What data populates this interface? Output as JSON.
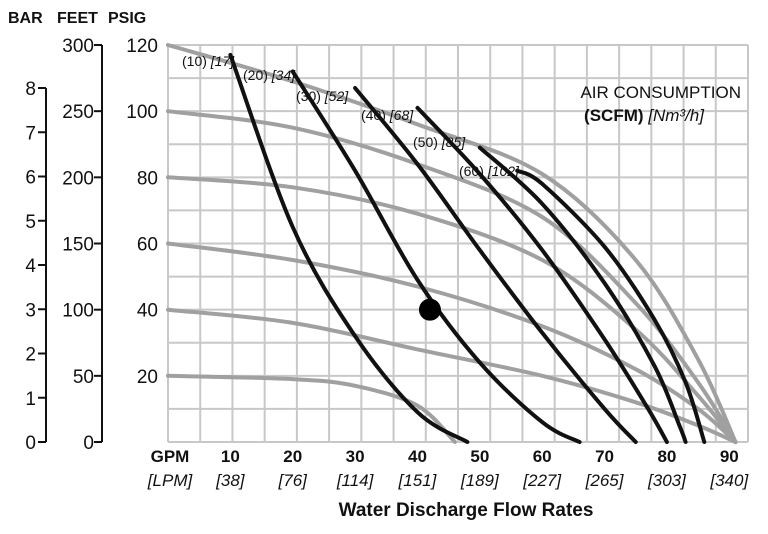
{
  "chart_data": {
    "type": "line",
    "title": "",
    "unit_headers": [
      "BAR",
      "FEET",
      "PSIG"
    ],
    "xlabel": "Water Discharge Flow Rates",
    "x_unit_primary": "GPM",
    "x_unit_secondary": "[LPM]",
    "xlim": [
      0,
      93
    ],
    "ylim": [
      0,
      120
    ],
    "x_ticks": [
      {
        "gpm": "10",
        "lpm": "[38]"
      },
      {
        "gpm": "20",
        "lpm": "[76]"
      },
      {
        "gpm": "30",
        "lpm": "[114]"
      },
      {
        "gpm": "40",
        "lpm": "[151]"
      },
      {
        "gpm": "50",
        "lpm": "[189]"
      },
      {
        "gpm": "60",
        "lpm": "[227]"
      },
      {
        "gpm": "70",
        "lpm": "[265]"
      },
      {
        "gpm": "80",
        "lpm": "[303]"
      },
      {
        "gpm": "90",
        "lpm": "[340]"
      }
    ],
    "psig_ticks": [
      "20",
      "40",
      "60",
      "80",
      "100",
      "120"
    ],
    "feet_ticks": [
      "0",
      "50",
      "100",
      "150",
      "200",
      "250",
      "300"
    ],
    "bar_ticks": [
      "0",
      "1",
      "2",
      "3",
      "4",
      "5",
      "6",
      "7",
      "8"
    ],
    "grid": true,
    "legend": {
      "title": "AIR CONSUMPTION",
      "subtitle_bold": "(SCFM)",
      "subtitle_ital": "[Nm³/h]"
    },
    "air_consumption_curves": [
      {
        "scfm": "(10)",
        "nm3h": "[17]",
        "points": [
          [
            10,
            117
          ],
          [
            20,
            65
          ],
          [
            30,
            32
          ],
          [
            40,
            9
          ],
          [
            48,
            0
          ]
        ]
      },
      {
        "scfm": "(20)",
        "nm3h": "[34]",
        "points": [
          [
            20,
            112
          ],
          [
            30,
            82
          ],
          [
            40,
            49
          ],
          [
            50,
            24
          ],
          [
            60,
            6
          ],
          [
            66,
            0
          ]
        ]
      },
      {
        "scfm": "(30)",
        "nm3h": "[52]",
        "points": [
          [
            30,
            107
          ],
          [
            40,
            84
          ],
          [
            50,
            58
          ],
          [
            60,
            33
          ],
          [
            70,
            10
          ],
          [
            75,
            0
          ]
        ]
      },
      {
        "scfm": "(40)",
        "nm3h": "[68]",
        "points": [
          [
            40,
            101
          ],
          [
            50,
            81
          ],
          [
            60,
            58
          ],
          [
            70,
            31
          ],
          [
            77,
            10
          ],
          [
            80,
            0
          ]
        ]
      },
      {
        "scfm": "(50)",
        "nm3h": "[85]",
        "points": [
          [
            50,
            89
          ],
          [
            60,
            72
          ],
          [
            70,
            48
          ],
          [
            78,
            23
          ],
          [
            82,
            5
          ],
          [
            83,
            0
          ]
        ]
      },
      {
        "scfm": "(60)",
        "nm3h": "[102]",
        "points": [
          [
            56,
            82
          ],
          [
            60,
            78
          ],
          [
            70,
            59
          ],
          [
            78,
            37
          ],
          [
            83,
            18
          ],
          [
            86,
            0
          ]
        ]
      }
    ],
    "air_inlet_pressure_curves": [
      {
        "psig": 120,
        "points": [
          [
            0,
            120
          ],
          [
            20,
            109
          ],
          [
            40,
            96
          ],
          [
            60,
            81
          ],
          [
            75,
            55
          ],
          [
            85,
            25
          ],
          [
            91,
            0
          ]
        ]
      },
      {
        "psig": 100,
        "points": [
          [
            0,
            100
          ],
          [
            20,
            95
          ],
          [
            40,
            84
          ],
          [
            60,
            68
          ],
          [
            75,
            42
          ],
          [
            85,
            18
          ],
          [
            91,
            0
          ]
        ]
      },
      {
        "psig": 80,
        "points": [
          [
            0,
            80
          ],
          [
            20,
            77
          ],
          [
            40,
            69
          ],
          [
            60,
            55
          ],
          [
            75,
            34
          ],
          [
            85,
            14
          ],
          [
            91,
            0
          ]
        ]
      },
      {
        "psig": 60,
        "points": [
          [
            0,
            60
          ],
          [
            20,
            55
          ],
          [
            40,
            47
          ],
          [
            60,
            35
          ],
          [
            75,
            22
          ],
          [
            85,
            10
          ],
          [
            91,
            0
          ]
        ]
      },
      {
        "psig": 40,
        "points": [
          [
            0,
            40
          ],
          [
            20,
            36
          ],
          [
            40,
            28
          ],
          [
            60,
            20
          ],
          [
            75,
            12
          ],
          [
            85,
            5
          ],
          [
            91,
            0
          ]
        ]
      },
      {
        "psig": 20,
        "points": [
          [
            0,
            20
          ],
          [
            20,
            19
          ],
          [
            30,
            17
          ],
          [
            40,
            11
          ],
          [
            46,
            0
          ]
        ]
      }
    ],
    "operating_point": {
      "x": 42,
      "y": 40
    }
  },
  "colors": {
    "pressure_curve": "#a0a0a0",
    "air_curve": "#111111",
    "grid": "#c8c8c8",
    "text": "#111111",
    "dot": "#000000"
  }
}
